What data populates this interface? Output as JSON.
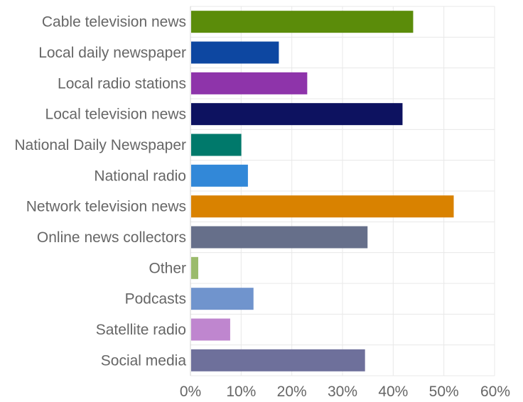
{
  "chart_data": {
    "type": "bar",
    "orientation": "horizontal",
    "categories": [
      "Cable television news",
      "Local daily newspaper",
      "Local radio stations",
      "Local television news",
      "National Daily Newspaper",
      "National radio",
      "Network television news",
      "Online news collectors",
      "Other",
      "Podcasts",
      "Satellite radio",
      "Social media"
    ],
    "values": [
      43.8,
      17.3,
      22.9,
      41.7,
      9.9,
      11.2,
      51.8,
      34.8,
      1.4,
      12.3,
      7.7,
      34.3
    ],
    "colors": [
      "#5b8c0a",
      "#0d47a1",
      "#8e34aa",
      "#0d1260",
      "#00796b",
      "#3288d8",
      "#d98200",
      "#666f8a",
      "#9bbb6c",
      "#7094cd",
      "#bf86cf",
      "#6e709b"
    ],
    "xlim": [
      0,
      60
    ],
    "xticks": [
      0,
      10,
      20,
      30,
      40,
      50,
      60
    ],
    "xtick_labels": [
      "0%",
      "10%",
      "20%",
      "30%",
      "40%",
      "50%",
      "60%"
    ],
    "title": "",
    "xlabel": "",
    "ylabel": "",
    "grid": true,
    "legend": "none"
  }
}
